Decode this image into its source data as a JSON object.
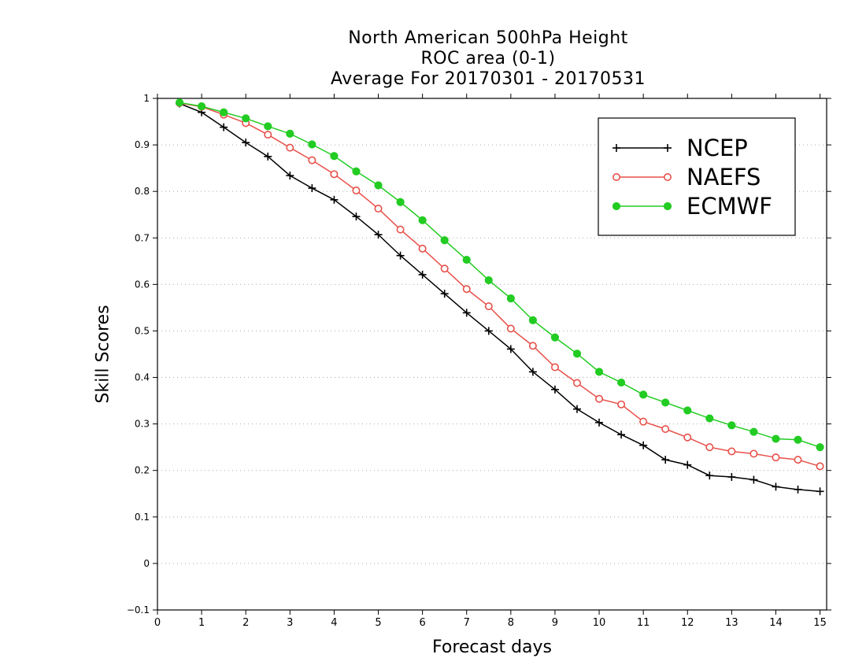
{
  "chart_data": {
    "type": "line",
    "title": [
      "North American 500hPa Height",
      "ROC area (0-1)",
      "Average For 20170301 - 20170531"
    ],
    "xlabel": "Forecast days",
    "ylabel": "Skill Scores",
    "xlim": [
      0,
      15.15
    ],
    "ylim": [
      -0.1,
      1
    ],
    "xticks": [
      0,
      1,
      2,
      3,
      4,
      5,
      6,
      7,
      8,
      9,
      10,
      11,
      12,
      13,
      14,
      15
    ],
    "yticks": [
      -0.1,
      0,
      0.1,
      0.2,
      0.3,
      0.4,
      0.5,
      0.6,
      0.7,
      0.8,
      0.9,
      1
    ],
    "ytick_labels": [
      "−0.1",
      "0",
      "0.1",
      "0.2",
      "0.3",
      "0.4",
      "0.5",
      "0.6",
      "0.7",
      "0.8",
      "0.9",
      "1"
    ],
    "grid": "horizontal dotted",
    "legend_position": "top-right",
    "x": [
      0.5,
      1,
      1.5,
      2,
      2.5,
      3,
      3.5,
      4,
      4.5,
      5,
      5.5,
      6,
      6.5,
      7,
      7.5,
      8,
      8.5,
      9,
      9.5,
      10,
      10.5,
      11,
      11.5,
      12,
      12.5,
      13,
      13.5,
      14,
      14.5,
      15
    ],
    "series": [
      {
        "name": "NCEP",
        "color": "#000000",
        "marker": "plus",
        "values": [
          0.989,
          0.97,
          0.938,
          0.905,
          0.875,
          0.834,
          0.807,
          0.782,
          0.746,
          0.707,
          0.662,
          0.621,
          0.58,
          0.539,
          0.5,
          0.461,
          0.412,
          0.374,
          0.332,
          0.303,
          0.277,
          0.254,
          0.223,
          0.212,
          0.189,
          0.186,
          0.18,
          0.165,
          0.159,
          0.155
        ]
      },
      {
        "name": "NAEFS",
        "color": "#e8504a",
        "marker": "open-circle",
        "values": [
          0.99,
          0.982,
          0.965,
          0.947,
          0.922,
          0.894,
          0.867,
          0.837,
          0.802,
          0.763,
          0.718,
          0.677,
          0.634,
          0.59,
          0.553,
          0.505,
          0.468,
          0.422,
          0.388,
          0.354,
          0.342,
          0.305,
          0.289,
          0.271,
          0.25,
          0.241,
          0.236,
          0.228,
          0.223,
          0.209
        ]
      },
      {
        "name": "ECMWF",
        "color": "#22cc22",
        "marker": "filled-circle",
        "values": [
          0.991,
          0.983,
          0.97,
          0.957,
          0.94,
          0.924,
          0.901,
          0.876,
          0.843,
          0.813,
          0.777,
          0.738,
          0.695,
          0.653,
          0.609,
          0.57,
          0.523,
          0.486,
          0.451,
          0.412,
          0.389,
          0.363,
          0.346,
          0.329,
          0.312,
          0.297,
          0.283,
          0.268,
          0.266,
          0.25
        ]
      }
    ]
  }
}
